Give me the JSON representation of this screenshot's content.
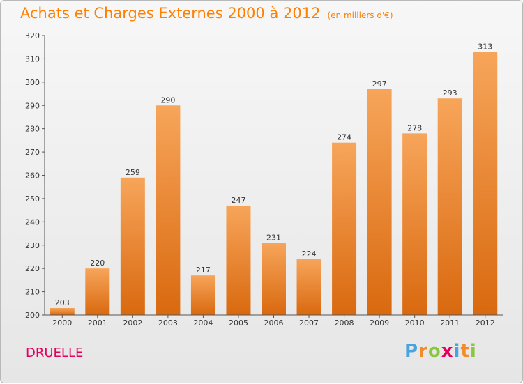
{
  "title": "Achats et Charges Externes 2000 à 2012",
  "subtitle": "(en milliers d'€)",
  "commune": "DRUELLE",
  "logo": {
    "text": "Proxiti",
    "letters": [
      {
        "char": "P",
        "color": "#4aa3df"
      },
      {
        "char": "r",
        "color": "#f28c28"
      },
      {
        "char": "o",
        "color": "#8cc63f"
      },
      {
        "char": "x",
        "color": "#e6005c"
      },
      {
        "char": "i",
        "color": "#4aa3df"
      },
      {
        "char": "t",
        "color": "#f28c28"
      },
      {
        "char": "i",
        "color": "#8cc63f"
      }
    ]
  },
  "chart_data": {
    "type": "bar",
    "title": "Achats et Charges Externes 2000 à 2012",
    "subtitle": "(en milliers d'€)",
    "xlabel": "",
    "ylabel": "",
    "categories": [
      "2000",
      "2001",
      "2002",
      "2003",
      "2004",
      "2005",
      "2006",
      "2007",
      "2008",
      "2009",
      "2010",
      "2011",
      "2012"
    ],
    "values": [
      203,
      220,
      259,
      290,
      217,
      247,
      231,
      224,
      274,
      297,
      278,
      293,
      313
    ],
    "ylim": [
      200,
      320
    ],
    "yticks": [
      200,
      210,
      220,
      230,
      240,
      250,
      260,
      270,
      280,
      290,
      300,
      310,
      320
    ],
    "grid": false,
    "legend": "none",
    "bar_color_top": "#f7a55a",
    "bar_color_bottom": "#d9690f"
  }
}
